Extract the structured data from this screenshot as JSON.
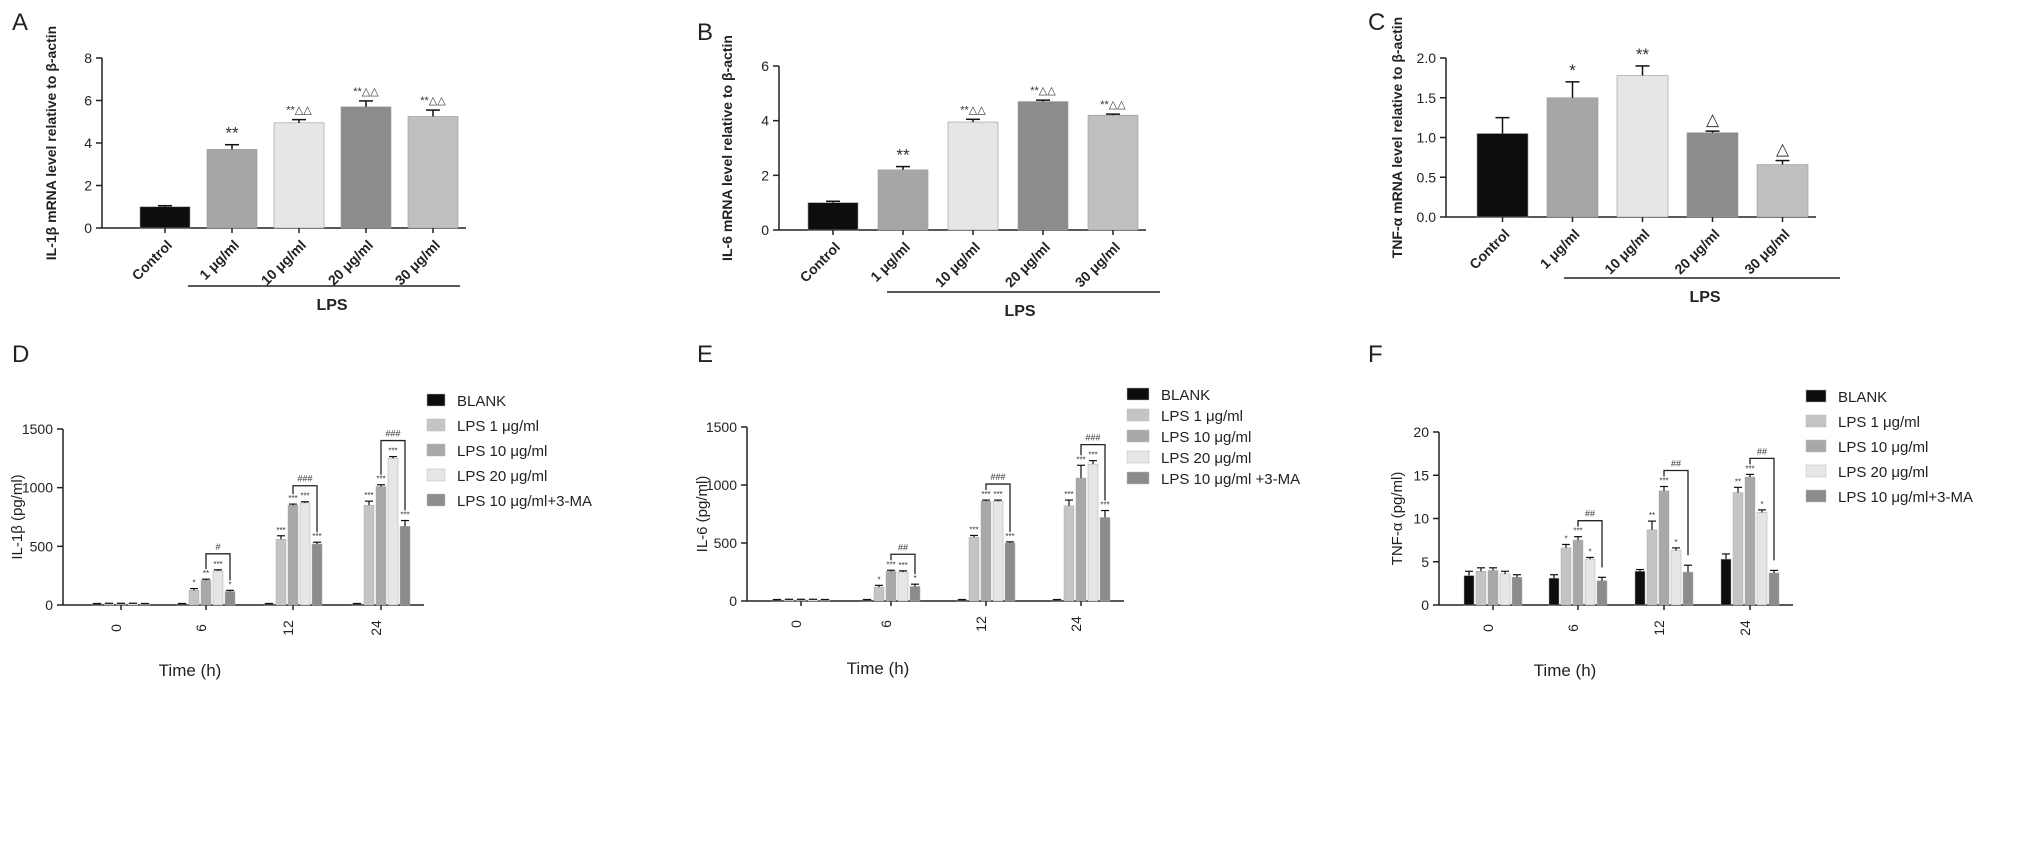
{
  "chart_data": [
    {
      "panel": "A",
      "type": "bar",
      "ylabel": "IL-1β mRNA level relative to β-actin",
      "categories": [
        "Control",
        "1 μg/ml",
        "10 μg/ml",
        "20 μg/ml",
        "30 μg/ml"
      ],
      "values": [
        1.0,
        3.7,
        4.95,
        5.7,
        5.25
      ],
      "errors": [
        0.05,
        0.22,
        0.15,
        0.28,
        0.3
      ],
      "annotations": [
        "",
        "**",
        "**△△",
        "**△△",
        "**△△"
      ],
      "colors": [
        "#0d0d0d",
        "#a6a6a6",
        "#e6e6e6",
        "#8c8c8c",
        "#c0c0c0"
      ],
      "ylim": [
        0,
        8
      ],
      "yticks": [
        0,
        2,
        4,
        6,
        8
      ],
      "group_label": "LPS"
    },
    {
      "panel": "B",
      "type": "bar",
      "ylabel": "IL-6 mRNA level relative to β-actin",
      "categories": [
        "Control",
        "1 μg/ml",
        "10 μg/ml",
        "20 μg/ml",
        "30 μg/ml"
      ],
      "values": [
        1.0,
        2.2,
        3.95,
        4.7,
        4.2
      ],
      "errors": [
        0.05,
        0.12,
        0.1,
        0.05,
        0.04
      ],
      "annotations": [
        "",
        "**",
        "**△△",
        "**△△",
        "**△△"
      ],
      "colors": [
        "#0d0d0d",
        "#a6a6a6",
        "#e6e6e6",
        "#8c8c8c",
        "#c0c0c0"
      ],
      "ylim": [
        0,
        6
      ],
      "yticks": [
        0,
        2,
        4,
        6
      ],
      "group_label": "LPS"
    },
    {
      "panel": "C",
      "type": "bar",
      "ylabel": "TNF-α mRNA level relative to β-actin",
      "categories": [
        "Control",
        "1 μg/ml",
        "10 μg/ml",
        "20 μg/ml",
        "30 μg/ml"
      ],
      "values": [
        1.05,
        1.5,
        1.78,
        1.06,
        0.66
      ],
      "errors": [
        0.2,
        0.2,
        0.12,
        0.02,
        0.05
      ],
      "annotations": [
        "",
        "*",
        "**",
        "△",
        "△"
      ],
      "colors": [
        "#0d0d0d",
        "#a6a6a6",
        "#e6e6e6",
        "#8c8c8c",
        "#c0c0c0"
      ],
      "ylim": [
        0,
        2.0
      ],
      "yticks": [
        "0.0",
        "0.5",
        "1.0",
        "1.5",
        "2.0"
      ],
      "group_label": "LPS"
    },
    {
      "panel": "D",
      "type": "bar",
      "xlabel": "Time (h)",
      "ylabel": "IL-1β (pg/ml)",
      "categories": [
        "0",
        "6",
        "12",
        "24"
      ],
      "ylim": [
        0,
        1500
      ],
      "yticks": [
        0,
        500,
        1000,
        1500
      ],
      "series": [
        {
          "name": "BLANK",
          "color": "#0d0d0d",
          "values": [
            10,
            10,
            10,
            10
          ],
          "errors": [
            3,
            3,
            3,
            3
          ],
          "stars": [
            "",
            "",
            "",
            ""
          ]
        },
        {
          "name": "LPS 1 μg/ml",
          "color": "#c4c4c4",
          "values": [
            12,
            125,
            560,
            850
          ],
          "errors": [
            3,
            15,
            30,
            35
          ],
          "stars": [
            "",
            "*",
            "***",
            "***"
          ]
        },
        {
          "name": "LPS 10 μg/ml",
          "color": "#a8a8a8",
          "values": [
            12,
            210,
            850,
            1010
          ],
          "errors": [
            3,
            10,
            10,
            15
          ],
          "stars": [
            "",
            "**",
            "***",
            "***"
          ]
        },
        {
          "name": "LPS 20 μg/ml",
          "color": "#e6e6e6",
          "values": [
            12,
            290,
            870,
            1250
          ],
          "errors": [
            3,
            10,
            10,
            15
          ],
          "stars": [
            "",
            "***",
            "***",
            "***"
          ]
        },
        {
          "name": "LPS 10 μg/ml+3-MA",
          "color": "#8c8c8c",
          "values": [
            10,
            115,
            520,
            670
          ],
          "errors": [
            3,
            10,
            15,
            50
          ],
          "stars": [
            "",
            "*",
            "***",
            "***"
          ]
        }
      ],
      "brackets": [
        "#",
        "###",
        "###"
      ]
    },
    {
      "panel": "E",
      "type": "bar",
      "xlabel": "Time (h)",
      "ylabel": "IL-6 (pg/ml)",
      "categories": [
        "0",
        "6",
        "12",
        "24"
      ],
      "ylim": [
        0,
        1500
      ],
      "yticks": [
        0,
        500,
        1000,
        1500
      ],
      "series": [
        {
          "name": "BLANK",
          "color": "#0d0d0d",
          "values": [
            10,
            10,
            10,
            10
          ],
          "errors": [
            3,
            3,
            3,
            3
          ],
          "stars": [
            "",
            "",
            "",
            ""
          ]
        },
        {
          "name": "LPS 1  μg/ml",
          "color": "#c4c4c4",
          "values": [
            12,
            120,
            550,
            820
          ],
          "errors": [
            3,
            15,
            15,
            50
          ],
          "stars": [
            "",
            "*",
            "***",
            "***"
          ]
        },
        {
          "name": "LPS 10  μg/ml",
          "color": "#a8a8a8",
          "values": [
            12,
            255,
            860,
            1060
          ],
          "errors": [
            3,
            10,
            10,
            110
          ],
          "stars": [
            "",
            "***",
            "***",
            "***"
          ]
        },
        {
          "name": "LPS 20  μg/ml",
          "color": "#e6e6e6",
          "values": [
            12,
            250,
            860,
            1180
          ],
          "errors": [
            3,
            10,
            10,
            30
          ],
          "stars": [
            "",
            "***",
            "***",
            "***"
          ]
        },
        {
          "name": "LPS 10  μg/ml +3-MA",
          "color": "#8c8c8c",
          "values": [
            10,
            125,
            500,
            720
          ],
          "errors": [
            3,
            20,
            10,
            60
          ],
          "stars": [
            "",
            "*",
            "***",
            "***"
          ]
        }
      ],
      "brackets": [
        "##",
        "###",
        "###"
      ]
    },
    {
      "panel": "F",
      "type": "bar",
      "xlabel": "Time (h)",
      "ylabel": "TNF-α (pg/ml)",
      "categories": [
        "0",
        "6",
        "12",
        "24"
      ],
      "ylim": [
        0,
        20
      ],
      "yticks": [
        0,
        5,
        10,
        15,
        20
      ],
      "series": [
        {
          "name": "BLANK",
          "color": "#0d0d0d",
          "values": [
            3.4,
            3.1,
            3.9,
            5.3
          ],
          "errors": [
            0.5,
            0.4,
            0.2,
            0.6
          ],
          "stars": [
            "",
            "",
            "",
            ""
          ]
        },
        {
          "name": "LPS 1 μg/ml",
          "color": "#c4c4c4",
          "values": [
            3.9,
            6.6,
            8.7,
            13.0
          ],
          "errors": [
            0.4,
            0.4,
            1.0,
            0.6
          ],
          "stars": [
            "",
            "*",
            "**",
            "**"
          ]
        },
        {
          "name": "LPS 10 μg/ml",
          "color": "#a8a8a8",
          "values": [
            4.0,
            7.5,
            13.2,
            14.8
          ],
          "errors": [
            0.3,
            0.4,
            0.5,
            0.3
          ],
          "stars": [
            "",
            "***",
            "***",
            "***"
          ]
        },
        {
          "name": "LPS 20 μg/ml",
          "color": "#e6e6e6",
          "values": [
            3.6,
            5.3,
            6.3,
            10.7
          ],
          "errors": [
            0.3,
            0.2,
            0.3,
            0.3
          ],
          "stars": [
            "",
            "*",
            "*",
            "*"
          ]
        },
        {
          "name": "LPS 10 μg/ml+3-MA",
          "color": "#8c8c8c",
          "values": [
            3.2,
            2.8,
            3.8,
            3.7
          ],
          "errors": [
            0.3,
            0.4,
            0.8,
            0.3
          ],
          "stars": [
            "",
            "",
            "",
            ""
          ]
        }
      ],
      "brackets": [
        "##",
        "##",
        "##"
      ]
    }
  ]
}
